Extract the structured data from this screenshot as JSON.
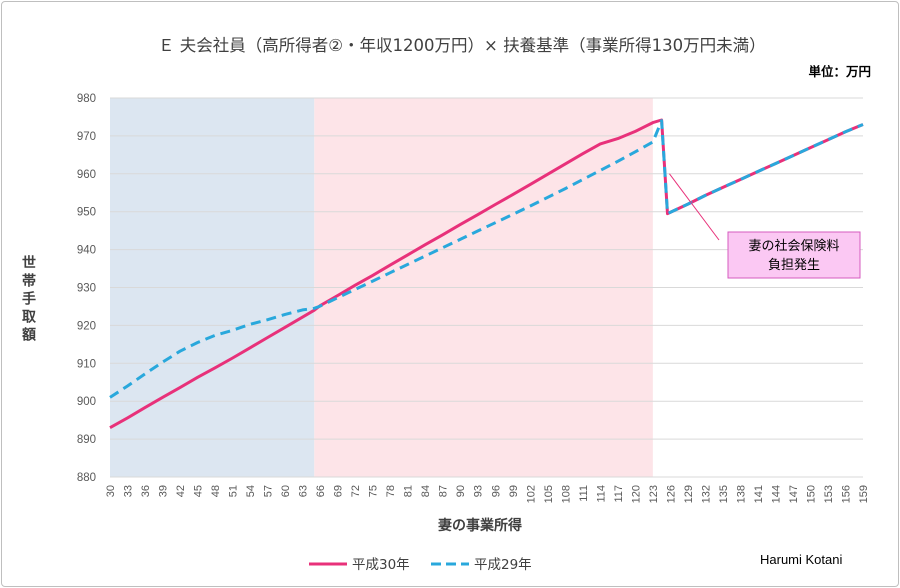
{
  "chart_data": {
    "type": "line",
    "title": "Ｅ 夫会社員（高所得者②・年収1200万円）× 扶養基準（事業所得130万円未満）",
    "unit_label": "単位：万円",
    "xlabel": "妻の事業所得",
    "ylabel": "世帯手取額",
    "ylim": [
      880,
      980
    ],
    "yticks": [
      880,
      890,
      900,
      910,
      920,
      930,
      940,
      950,
      960,
      970,
      980
    ],
    "x": [
      30,
      33,
      36,
      39,
      42,
      45,
      48,
      51,
      54,
      57,
      60,
      63,
      66,
      69,
      72,
      75,
      78,
      81,
      84,
      87,
      90,
      93,
      96,
      99,
      102,
      105,
      108,
      111,
      114,
      117,
      120,
      123,
      126,
      129,
      132,
      135,
      138,
      141,
      144,
      147,
      150,
      153,
      156,
      159
    ],
    "grid": true,
    "shaded_regions": [
      {
        "from": 30,
        "to": 65,
        "color": "#dce6f1"
      },
      {
        "from": 65,
        "to": 123,
        "color": "#fde4e8"
      }
    ],
    "series": [
      {
        "name": "平成30年",
        "color": "#e8317a",
        "style": "solid",
        "points": [
          [
            30,
            893
          ],
          [
            33,
            895.6
          ],
          [
            36,
            898.3
          ],
          [
            39,
            901
          ],
          [
            42,
            903.6
          ],
          [
            45,
            906.3
          ],
          [
            48,
            908.8
          ],
          [
            51,
            911.4
          ],
          [
            54,
            914.1
          ],
          [
            57,
            916.8
          ],
          [
            60,
            919.5
          ],
          [
            63,
            922.2
          ],
          [
            65,
            924
          ],
          [
            66,
            925.2
          ],
          [
            69,
            927.9
          ],
          [
            72,
            930.6
          ],
          [
            75,
            933.2
          ],
          [
            78,
            935.9
          ],
          [
            81,
            938.6
          ],
          [
            84,
            941.3
          ],
          [
            87,
            943.9
          ],
          [
            90,
            946.6
          ],
          [
            93,
            949.2
          ],
          [
            96,
            951.9
          ],
          [
            99,
            954.5
          ],
          [
            102,
            957.2
          ],
          [
            105,
            959.9
          ],
          [
            108,
            962.6
          ],
          [
            111,
            965.3
          ],
          [
            114,
            967.9
          ],
          [
            117,
            969.3
          ],
          [
            120,
            971.2
          ],
          [
            123,
            973.5
          ],
          [
            124.5,
            974.2
          ],
          [
            125.5,
            949.5
          ],
          [
            129,
            952
          ],
          [
            132,
            954.3
          ],
          [
            135,
            956.4
          ],
          [
            138,
            958.5
          ],
          [
            141,
            960.6
          ],
          [
            144,
            962.7
          ],
          [
            147,
            964.8
          ],
          [
            150,
            966.9
          ],
          [
            153,
            969
          ],
          [
            156,
            971.1
          ],
          [
            159,
            973
          ]
        ]
      },
      {
        "name": "平成29年",
        "color": "#29a8dc",
        "style": "dashed",
        "points": [
          [
            30,
            901
          ],
          [
            33,
            904
          ],
          [
            36,
            907.2
          ],
          [
            39,
            910.3
          ],
          [
            42,
            913.2
          ],
          [
            45,
            915.5
          ],
          [
            48,
            917.4
          ],
          [
            51,
            918.7
          ],
          [
            54,
            920.3
          ],
          [
            57,
            921.5
          ],
          [
            60,
            922.9
          ],
          [
            63,
            924.1
          ],
          [
            65,
            924.5
          ],
          [
            66,
            925.1
          ],
          [
            69,
            927.3
          ],
          [
            72,
            929.5
          ],
          [
            75,
            931.7
          ],
          [
            78,
            933.9
          ],
          [
            81,
            936.1
          ],
          [
            84,
            938.3
          ],
          [
            87,
            940.5
          ],
          [
            90,
            942.7
          ],
          [
            93,
            944.9
          ],
          [
            96,
            947.1
          ],
          [
            99,
            949.3
          ],
          [
            102,
            951.5
          ],
          [
            105,
            953.8
          ],
          [
            108,
            956.1
          ],
          [
            111,
            958.5
          ],
          [
            114,
            960.9
          ],
          [
            117,
            963.3
          ],
          [
            120,
            965.8
          ],
          [
            123,
            968.4
          ],
          [
            124.5,
            974
          ],
          [
            125.5,
            949.5
          ],
          [
            129,
            952
          ],
          [
            132,
            954.3
          ],
          [
            135,
            956.4
          ],
          [
            138,
            958.5
          ],
          [
            141,
            960.6
          ],
          [
            144,
            962.7
          ],
          [
            147,
            964.8
          ],
          [
            150,
            966.9
          ],
          [
            153,
            969
          ],
          [
            156,
            971.1
          ],
          [
            159,
            973
          ]
        ]
      }
    ],
    "annotation": {
      "lines": [
        "妻の社会保険料",
        "負担発生"
      ],
      "points_to": [
        125.5,
        960
      ]
    },
    "legend": [
      {
        "name": "平成30年",
        "color": "#e8317a",
        "style": "solid"
      },
      {
        "name": "平成29年",
        "color": "#29a8dc",
        "style": "dashed"
      }
    ],
    "legend_position": "bottom",
    "credit": "Harumi Kotani"
  }
}
